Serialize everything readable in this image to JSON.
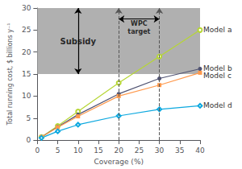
{
  "chart_data": {
    "type": "line",
    "xlabel": "Coverage (%)",
    "ylabel": "Total running cost, $ billions y⁻¹",
    "x": [
      1,
      5,
      10,
      20,
      30,
      40
    ],
    "series": [
      {
        "name": "Model a",
        "values": [
          0.7,
          3.2,
          6.5,
          13.0,
          19.0,
          25.0
        ],
        "marker": "open circle"
      },
      {
        "name": "Model b",
        "values": [
          0.7,
          3.0,
          5.8,
          10.5,
          14.0,
          16.2
        ],
        "marker": "circle"
      },
      {
        "name": "Model c",
        "values": [
          0.7,
          2.9,
          5.4,
          10.0,
          12.5,
          15.3
        ],
        "marker": "square"
      },
      {
        "name": "Model d",
        "values": [
          0.5,
          2.0,
          3.5,
          5.5,
          7.0,
          7.8
        ],
        "marker": "open diamond"
      }
    ],
    "xlim": [
      0,
      40
    ],
    "ylim": [
      0,
      30
    ],
    "xticks": [
      0,
      5,
      10,
      15,
      20,
      25,
      30,
      35,
      40
    ],
    "yticks": [
      0,
      5,
      10,
      15,
      20,
      25,
      30
    ],
    "grid": false,
    "annotations": [
      {
        "type": "band",
        "y": [
          15,
          30
        ],
        "color": "#b0b0b0"
      },
      {
        "type": "vline",
        "x": 20,
        "line_style": "dashed",
        "color": "#555555"
      },
      {
        "type": "vline",
        "x": 30,
        "line_style": "dashed",
        "color": "#555555"
      },
      {
        "type": "double_arrow",
        "from": [
          10,
          15
        ],
        "to": [
          10,
          30
        ]
      },
      {
        "type": "double_arrow",
        "from": [
          20,
          27.5
        ],
        "to": [
          30,
          27.5
        ]
      },
      {
        "type": "text",
        "text": "Subsidy",
        "x": 10,
        "y": 22.5
      },
      {
        "type": "text",
        "text": "WPC\ntarget",
        "x": 25,
        "y": 25.5
      }
    ]
  }
}
